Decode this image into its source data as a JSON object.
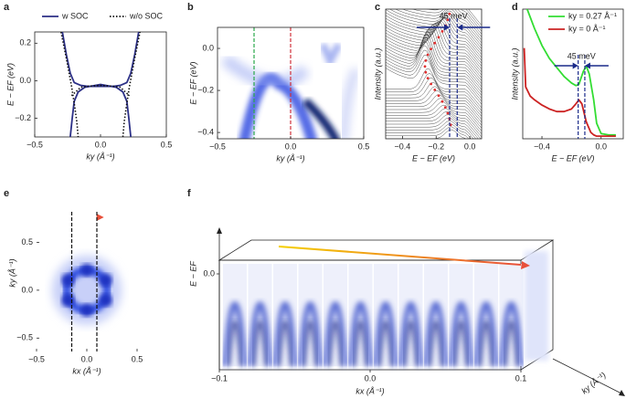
{
  "chart_data": [
    {
      "panel": "a",
      "type": "line",
      "xlabel": "ky (Å⁻¹)",
      "ylabel": "E − EF (eV)",
      "xlim": [
        -0.5,
        0.5
      ],
      "ylim": [
        -0.3,
        0.26
      ],
      "xticks": [
        {
          "value": -0.5,
          "label": "−0.5"
        },
        {
          "value": 0,
          "label": "0.0"
        },
        {
          "value": 0.5,
          "label": "0.5"
        }
      ],
      "yticks": [
        {
          "value": -0.2,
          "label": "−0.2"
        },
        {
          "value": 0,
          "label": "0.0"
        },
        {
          "value": 0.2,
          "label": "0.2"
        }
      ],
      "series": [
        {
          "name": "w SOC",
          "color": "#2b2f86",
          "dash": false,
          "x": [
            -0.29,
            -0.26,
            -0.23,
            -0.2,
            -0.15,
            -0.1,
            0,
            0.1,
            0.15,
            0.2,
            0.23,
            0.26,
            0.29,
            null,
            -0.23,
            -0.215,
            -0.2,
            -0.17,
            -0.12,
            0,
            0.12,
            0.17,
            0.2,
            0.215,
            0.23
          ],
          "values": [
            0.26,
            0.14,
            0.04,
            -0.01,
            -0.025,
            -0.03,
            -0.03,
            -0.03,
            -0.025,
            -0.01,
            0.04,
            0.14,
            0.26,
            null,
            -0.3,
            -0.2,
            -0.11,
            -0.06,
            -0.035,
            -0.02,
            -0.035,
            -0.06,
            -0.11,
            -0.2,
            -0.3
          ]
        },
        {
          "name": "w/o SOC",
          "color": "#111111",
          "dash": true,
          "x": [
            -0.3,
            -0.26,
            -0.22,
            -0.2,
            -0.18,
            -0.17,
            null,
            -0.22,
            -0.15,
            -0.1,
            0,
            0.1,
            0.15,
            0.22,
            null,
            0.17,
            0.18,
            0.2,
            0.22,
            0.26,
            0.3
          ],
          "values": [
            0.26,
            0.12,
            -0.03,
            -0.12,
            -0.22,
            -0.3,
            null,
            -0.08,
            -0.035,
            -0.03,
            -0.025,
            -0.03,
            -0.035,
            -0.08,
            null,
            -0.3,
            -0.22,
            -0.12,
            -0.03,
            0.12,
            0.26
          ]
        }
      ]
    },
    {
      "panel": "b",
      "type": "heatmap",
      "xlabel": "ky (Å⁻¹)",
      "ylabel": "E − EF (eV)",
      "xlim": [
        -0.5,
        0.5
      ],
      "ylim": [
        -0.43,
        0.1
      ],
      "xticks": [
        {
          "value": -0.5,
          "label": "−0.5"
        },
        {
          "value": 0,
          "label": "0.0"
        },
        {
          "value": 0.5,
          "label": "0.5"
        }
      ],
      "yticks": [
        {
          "value": -0.4,
          "label": "−0.4"
        },
        {
          "value": -0.2,
          "label": "−0.2"
        },
        {
          "value": 0,
          "label": "0.0"
        }
      ],
      "markers": [
        {
          "x": -0.25,
          "color": "#2aa84a"
        },
        {
          "x": 0,
          "color": "#d0303a"
        }
      ]
    },
    {
      "panel": "c",
      "type": "waterfall",
      "xlabel": "E − EF (eV)",
      "ylabel": "Intensity (a.u.)",
      "xlim": [
        -0.5,
        0.07
      ],
      "ylim": [
        0,
        1
      ],
      "xticks": [
        {
          "value": -0.4,
          "label": "−0.4"
        },
        {
          "value": -0.2,
          "label": "−0.2"
        },
        {
          "value": 0,
          "label": "0.0"
        }
      ],
      "annotation": "45 meV",
      "markers": [
        {
          "x": -0.12,
          "color": "#1a2a8a"
        },
        {
          "x": -0.075,
          "color": "#1a2a8a"
        }
      ]
    },
    {
      "panel": "d",
      "type": "line",
      "xlabel": "E − EF (eV)",
      "ylabel": "Intensity (a.u.)",
      "xlim": [
        -0.53,
        0.15
      ],
      "ylim": [
        0,
        1
      ],
      "xticks": [
        {
          "value": -0.4,
          "label": "−0.4"
        },
        {
          "value": 0,
          "label": "0.0"
        }
      ],
      "annotation": "45 meV",
      "markers": [
        {
          "x": -0.155,
          "color": "#1a2a8a"
        },
        {
          "x": -0.11,
          "color": "#1a2a8a"
        }
      ],
      "series": [
        {
          "name": "ky = 0.27 Å⁻¹",
          "color": "#33dd33",
          "dash": false,
          "x": [
            -0.5,
            -0.45,
            -0.4,
            -0.35,
            -0.3,
            -0.25,
            -0.2,
            -0.17,
            -0.15,
            -0.12,
            -0.1,
            -0.08,
            -0.05,
            -0.03,
            0,
            0.05,
            0.1
          ],
          "values": [
            1.0,
            0.85,
            0.72,
            0.62,
            0.55,
            0.48,
            0.43,
            0.41,
            0.42,
            0.52,
            0.56,
            0.5,
            0.3,
            0.12,
            0.04,
            0.03,
            0.03
          ]
        },
        {
          "name": "ky = 0 Å⁻¹",
          "color": "#cc2222",
          "dash": false,
          "x": [
            -0.52,
            -0.51,
            -0.48,
            -0.45,
            -0.4,
            -0.35,
            -0.3,
            -0.25,
            -0.2,
            -0.17,
            -0.15,
            -0.13,
            -0.1,
            -0.07,
            -0.05,
            -0.03,
            0,
            0.05,
            0.1
          ],
          "values": [
            0.7,
            0.4,
            0.33,
            0.3,
            0.26,
            0.23,
            0.21,
            0.21,
            0.23,
            0.27,
            0.3,
            0.27,
            0.13,
            0.05,
            0.03,
            0.02,
            0.02,
            0.02,
            0.02
          ]
        }
      ]
    },
    {
      "panel": "e",
      "type": "heatmap",
      "xlabel": "kx (Å⁻¹)",
      "ylabel": "ky (Å⁻¹)",
      "xlim": [
        -0.5,
        0.5
      ],
      "ylim": [
        -0.64,
        1.0
      ],
      "xticks": [
        {
          "value": -0.5,
          "label": "−0.5"
        },
        {
          "value": 0,
          "label": "0.0"
        },
        {
          "value": 0.5,
          "label": "0.5"
        }
      ],
      "yticks": [
        {
          "value": -0.5,
          "label": "−0.5"
        },
        {
          "value": 0,
          "label": "0.0"
        },
        {
          "value": 0.5,
          "label": "0.5"
        }
      ],
      "markers": [
        {
          "x": -0.15,
          "color": "#111111"
        },
        {
          "x": 0.1,
          "color": "#111111"
        }
      ]
    },
    {
      "panel": "f",
      "type": "stack3d",
      "xlabel": "kx (Å⁻¹)",
      "ylabel": "E − EF",
      "zlabel": "ky (Å⁻¹)",
      "xlim": [
        -0.1,
        0.1
      ],
      "ylim": [
        -0.35,
        0.15
      ],
      "xticks": [
        {
          "value": -0.1,
          "label": "−0.1"
        },
        {
          "value": 0,
          "label": "0.0"
        },
        {
          "value": 0.1,
          "label": "0.1"
        }
      ],
      "yticks": [
        {
          "value": 0,
          "label": "0.0"
        }
      ]
    }
  ]
}
